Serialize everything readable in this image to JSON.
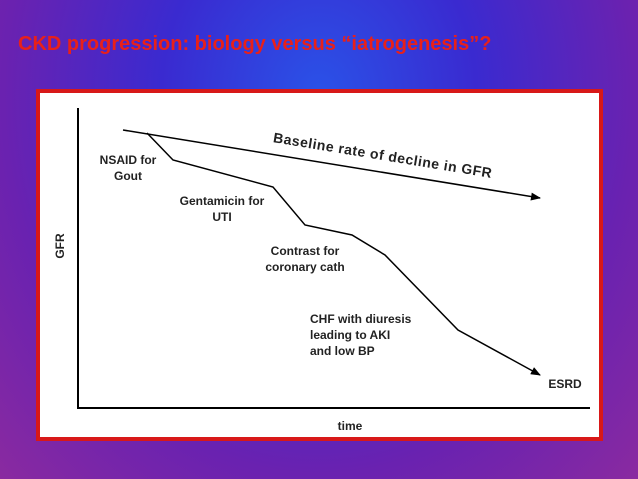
{
  "title": "CKD progression: biology versus “iatrogenesis”?",
  "y_label": "GFR",
  "x_label": "time",
  "baseline_label": "Baseline rate of decline in GFR",
  "events": [
    {
      "lines": [
        "NSAID for",
        "Gout"
      ]
    },
    {
      "lines": [
        "Gentamicin for",
        "UTI"
      ]
    },
    {
      "lines": [
        "Contrast for",
        "coronary cath"
      ]
    },
    {
      "lines": [
        "CHF with diuresis",
        "leading to AKI",
        "and low BP"
      ]
    }
  ],
  "end_label": "ESRD"
}
